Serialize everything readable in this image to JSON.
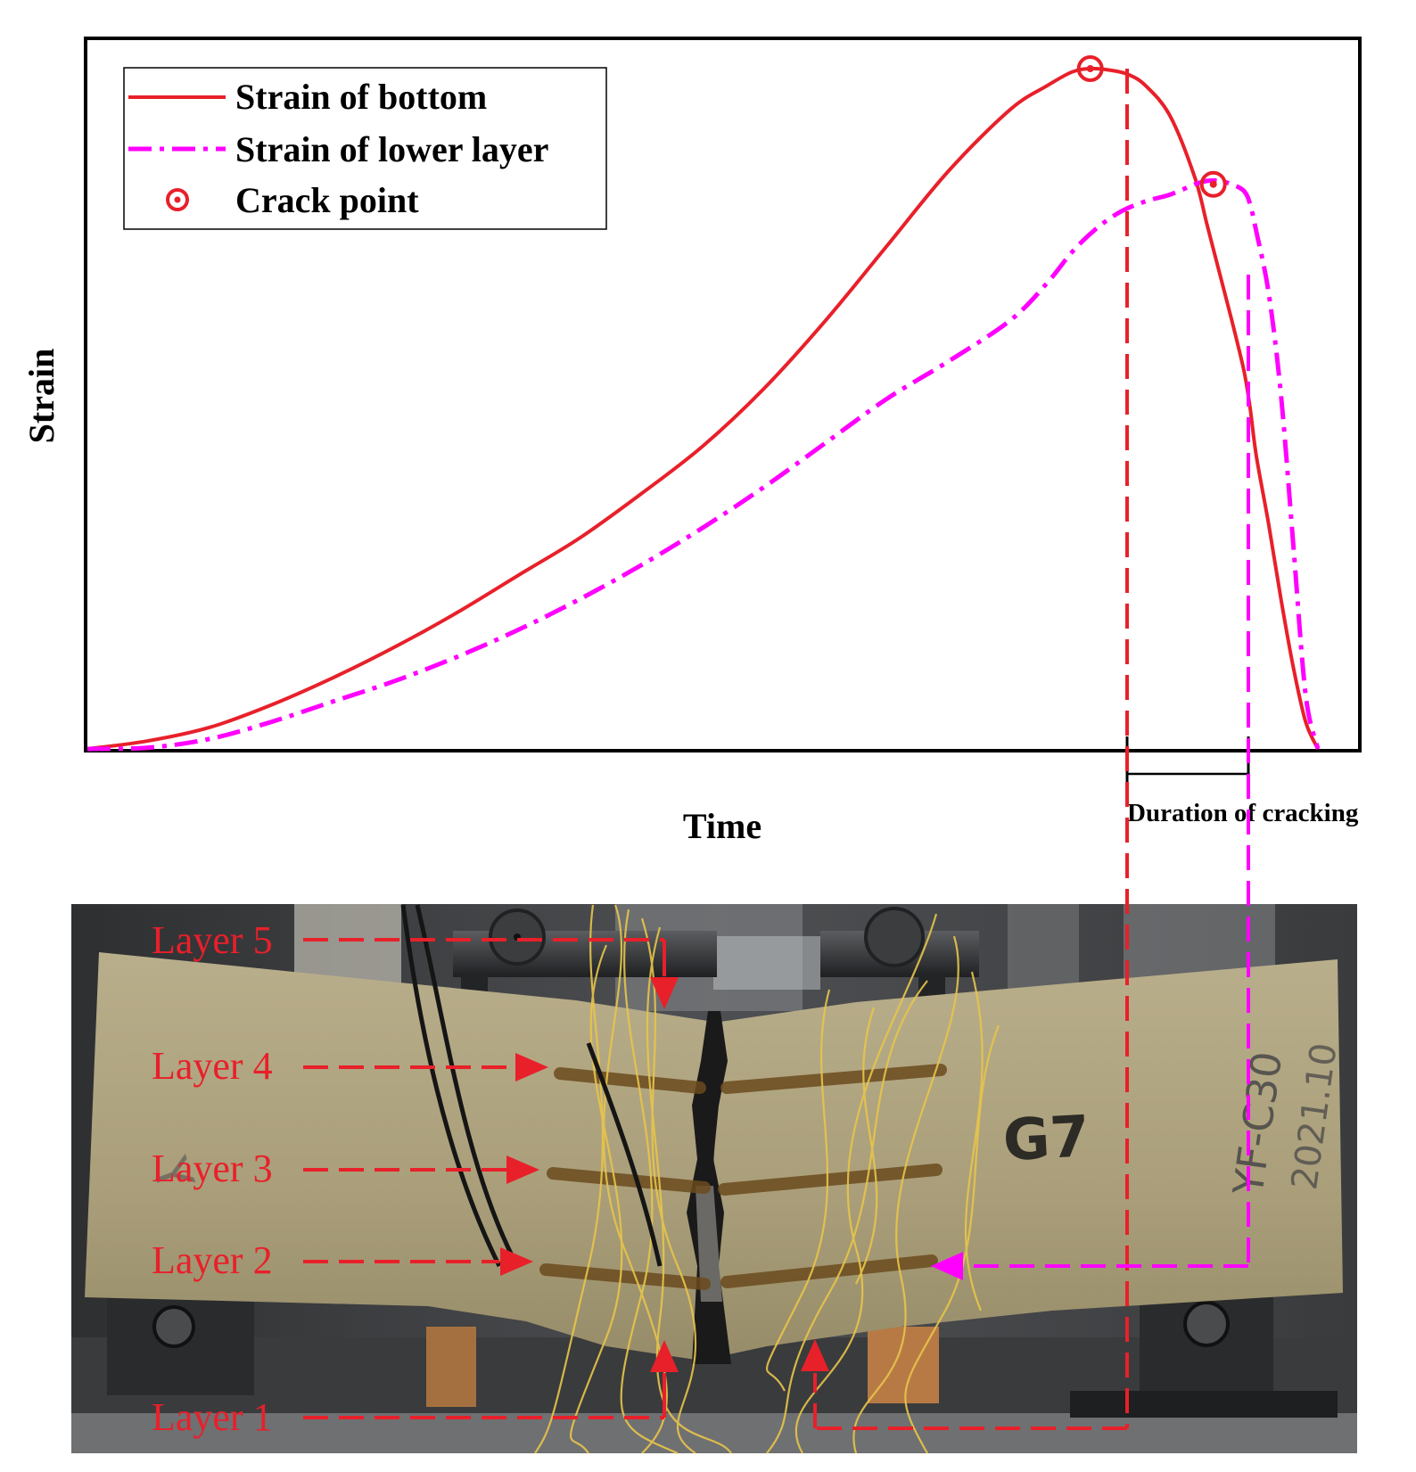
{
  "chart_data": {
    "type": "line",
    "xlabel": "Time",
    "ylabel": "Strain",
    "xlim": [
      0,
      100
    ],
    "ylim": [
      0,
      100
    ],
    "grid": false,
    "legend_position": "top-left",
    "series": [
      {
        "name": "Strain of bottom",
        "style": "solid",
        "color": "#e8202a",
        "x": [
          0,
          5,
          10,
          15,
          20,
          25,
          30,
          35,
          40,
          45,
          50,
          55,
          60,
          65,
          70,
          75,
          78,
          80,
          81.5,
          83,
          84.5,
          86,
          88,
          90,
          91,
          92,
          93,
          94,
          94.5,
          95,
          96,
          97,
          98,
          99,
          100
        ],
        "y": [
          0,
          1.2,
          3.2,
          6.5,
          10.5,
          15,
          20,
          25.5,
          31,
          37.5,
          44.5,
          53,
          63,
          74,
          85,
          94,
          97.5,
          99.5,
          100,
          99.8,
          99.2,
          97.5,
          93,
          84,
          77,
          70,
          63,
          55.5,
          50,
          43,
          33,
          22,
          12,
          4,
          0
        ]
      },
      {
        "name": "Strain of lower layer",
        "style": "dash-dot",
        "color": "#ff00ff",
        "x": [
          0,
          5,
          10,
          15,
          20,
          25,
          30,
          35,
          40,
          45,
          50,
          55,
          60,
          65,
          70,
          75,
          78,
          80,
          82,
          84,
          86,
          88,
          90,
          91,
          92,
          93,
          94,
          94.5,
          95,
          96,
          97,
          98,
          99,
          100
        ],
        "y": [
          0,
          0.2,
          1.5,
          4,
          7,
          10,
          13.5,
          17.5,
          22,
          27,
          32.5,
          38.5,
          45,
          51.5,
          57,
          63,
          68.5,
          73,
          76.5,
          79,
          80.5,
          81.5,
          83,
          83.5,
          83.5,
          83,
          82,
          80,
          76,
          67,
          52,
          30,
          8,
          0
        ]
      }
    ],
    "crack_points": [
      {
        "x": 81.5,
        "y": 100
      },
      {
        "x": 91.5,
        "y": 83
      }
    ],
    "legend": [
      "Strain of bottom",
      "Strain of lower layer",
      "Crack point"
    ],
    "annotation": "Duration of cracking"
  },
  "photo": {
    "layer_labels": [
      "Layer 5",
      "Layer 4",
      "Layer 3",
      "Layer 2",
      "Layer 1"
    ],
    "specimen_mark": "G7",
    "handwriting_right": "YF-C30",
    "handwriting_date": "2021.10",
    "handwriting_left": "Y"
  },
  "colors": {
    "bottom": "#e8202a",
    "lower": "#ff00ff",
    "annotation_red": "#e8202a",
    "annotation_magenta": "#ff00ff",
    "concrete": "#aba07c",
    "wire": "#e8c54a"
  }
}
